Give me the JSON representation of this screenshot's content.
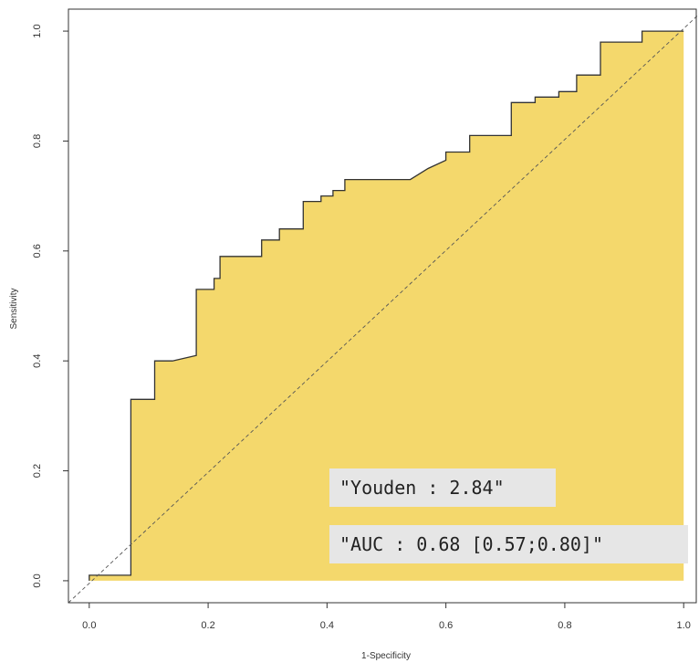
{
  "chart_data": {
    "type": "area",
    "xlabel": "1-Specificity",
    "ylabel": "Sensitivity",
    "xlim": [
      -0.035,
      1.035
    ],
    "ylim": [
      -0.04,
      1.04
    ],
    "x_ticks": [
      "0.0",
      "0.2",
      "0.4",
      "0.6",
      "0.8",
      "1.0"
    ],
    "y_ticks": [
      "0.0",
      "0.2",
      "0.4",
      "0.6",
      "0.8",
      "1.0"
    ],
    "grid": false,
    "fill_color": "#f4d86c",
    "line_color": "#333333",
    "diagonal": {
      "from": [
        0,
        0
      ],
      "to": [
        1,
        1
      ],
      "style": "dashed"
    },
    "roc_curve": {
      "x": [
        0.0,
        0.0,
        0.07,
        0.07,
        0.11,
        0.11,
        0.14,
        0.18,
        0.18,
        0.21,
        0.21,
        0.22,
        0.22,
        0.29,
        0.29,
        0.32,
        0.32,
        0.36,
        0.36,
        0.39,
        0.39,
        0.41,
        0.41,
        0.43,
        0.43,
        0.54,
        0.57,
        0.6,
        0.6,
        0.64,
        0.64,
        0.67,
        0.67,
        0.71,
        0.71,
        0.75,
        0.75,
        0.79,
        0.79,
        0.82,
        0.82,
        0.86,
        0.86,
        0.93,
        0.93,
        1.0
      ],
      "y": [
        0.0,
        0.01,
        0.01,
        0.33,
        0.33,
        0.4,
        0.4,
        0.41,
        0.53,
        0.53,
        0.55,
        0.55,
        0.59,
        0.59,
        0.62,
        0.62,
        0.64,
        0.64,
        0.69,
        0.69,
        0.7,
        0.7,
        0.71,
        0.71,
        0.73,
        0.73,
        0.75,
        0.765,
        0.78,
        0.78,
        0.81,
        0.81,
        0.81,
        0.81,
        0.87,
        0.87,
        0.88,
        0.88,
        0.89,
        0.89,
        0.92,
        0.92,
        0.98,
        0.98,
        1.0,
        1.0
      ]
    },
    "annotations": [
      {
        "text": "\"Youden : 2.84\""
      },
      {
        "text": "\"AUC : 0.68 [0.57;0.80]\""
      }
    ]
  }
}
